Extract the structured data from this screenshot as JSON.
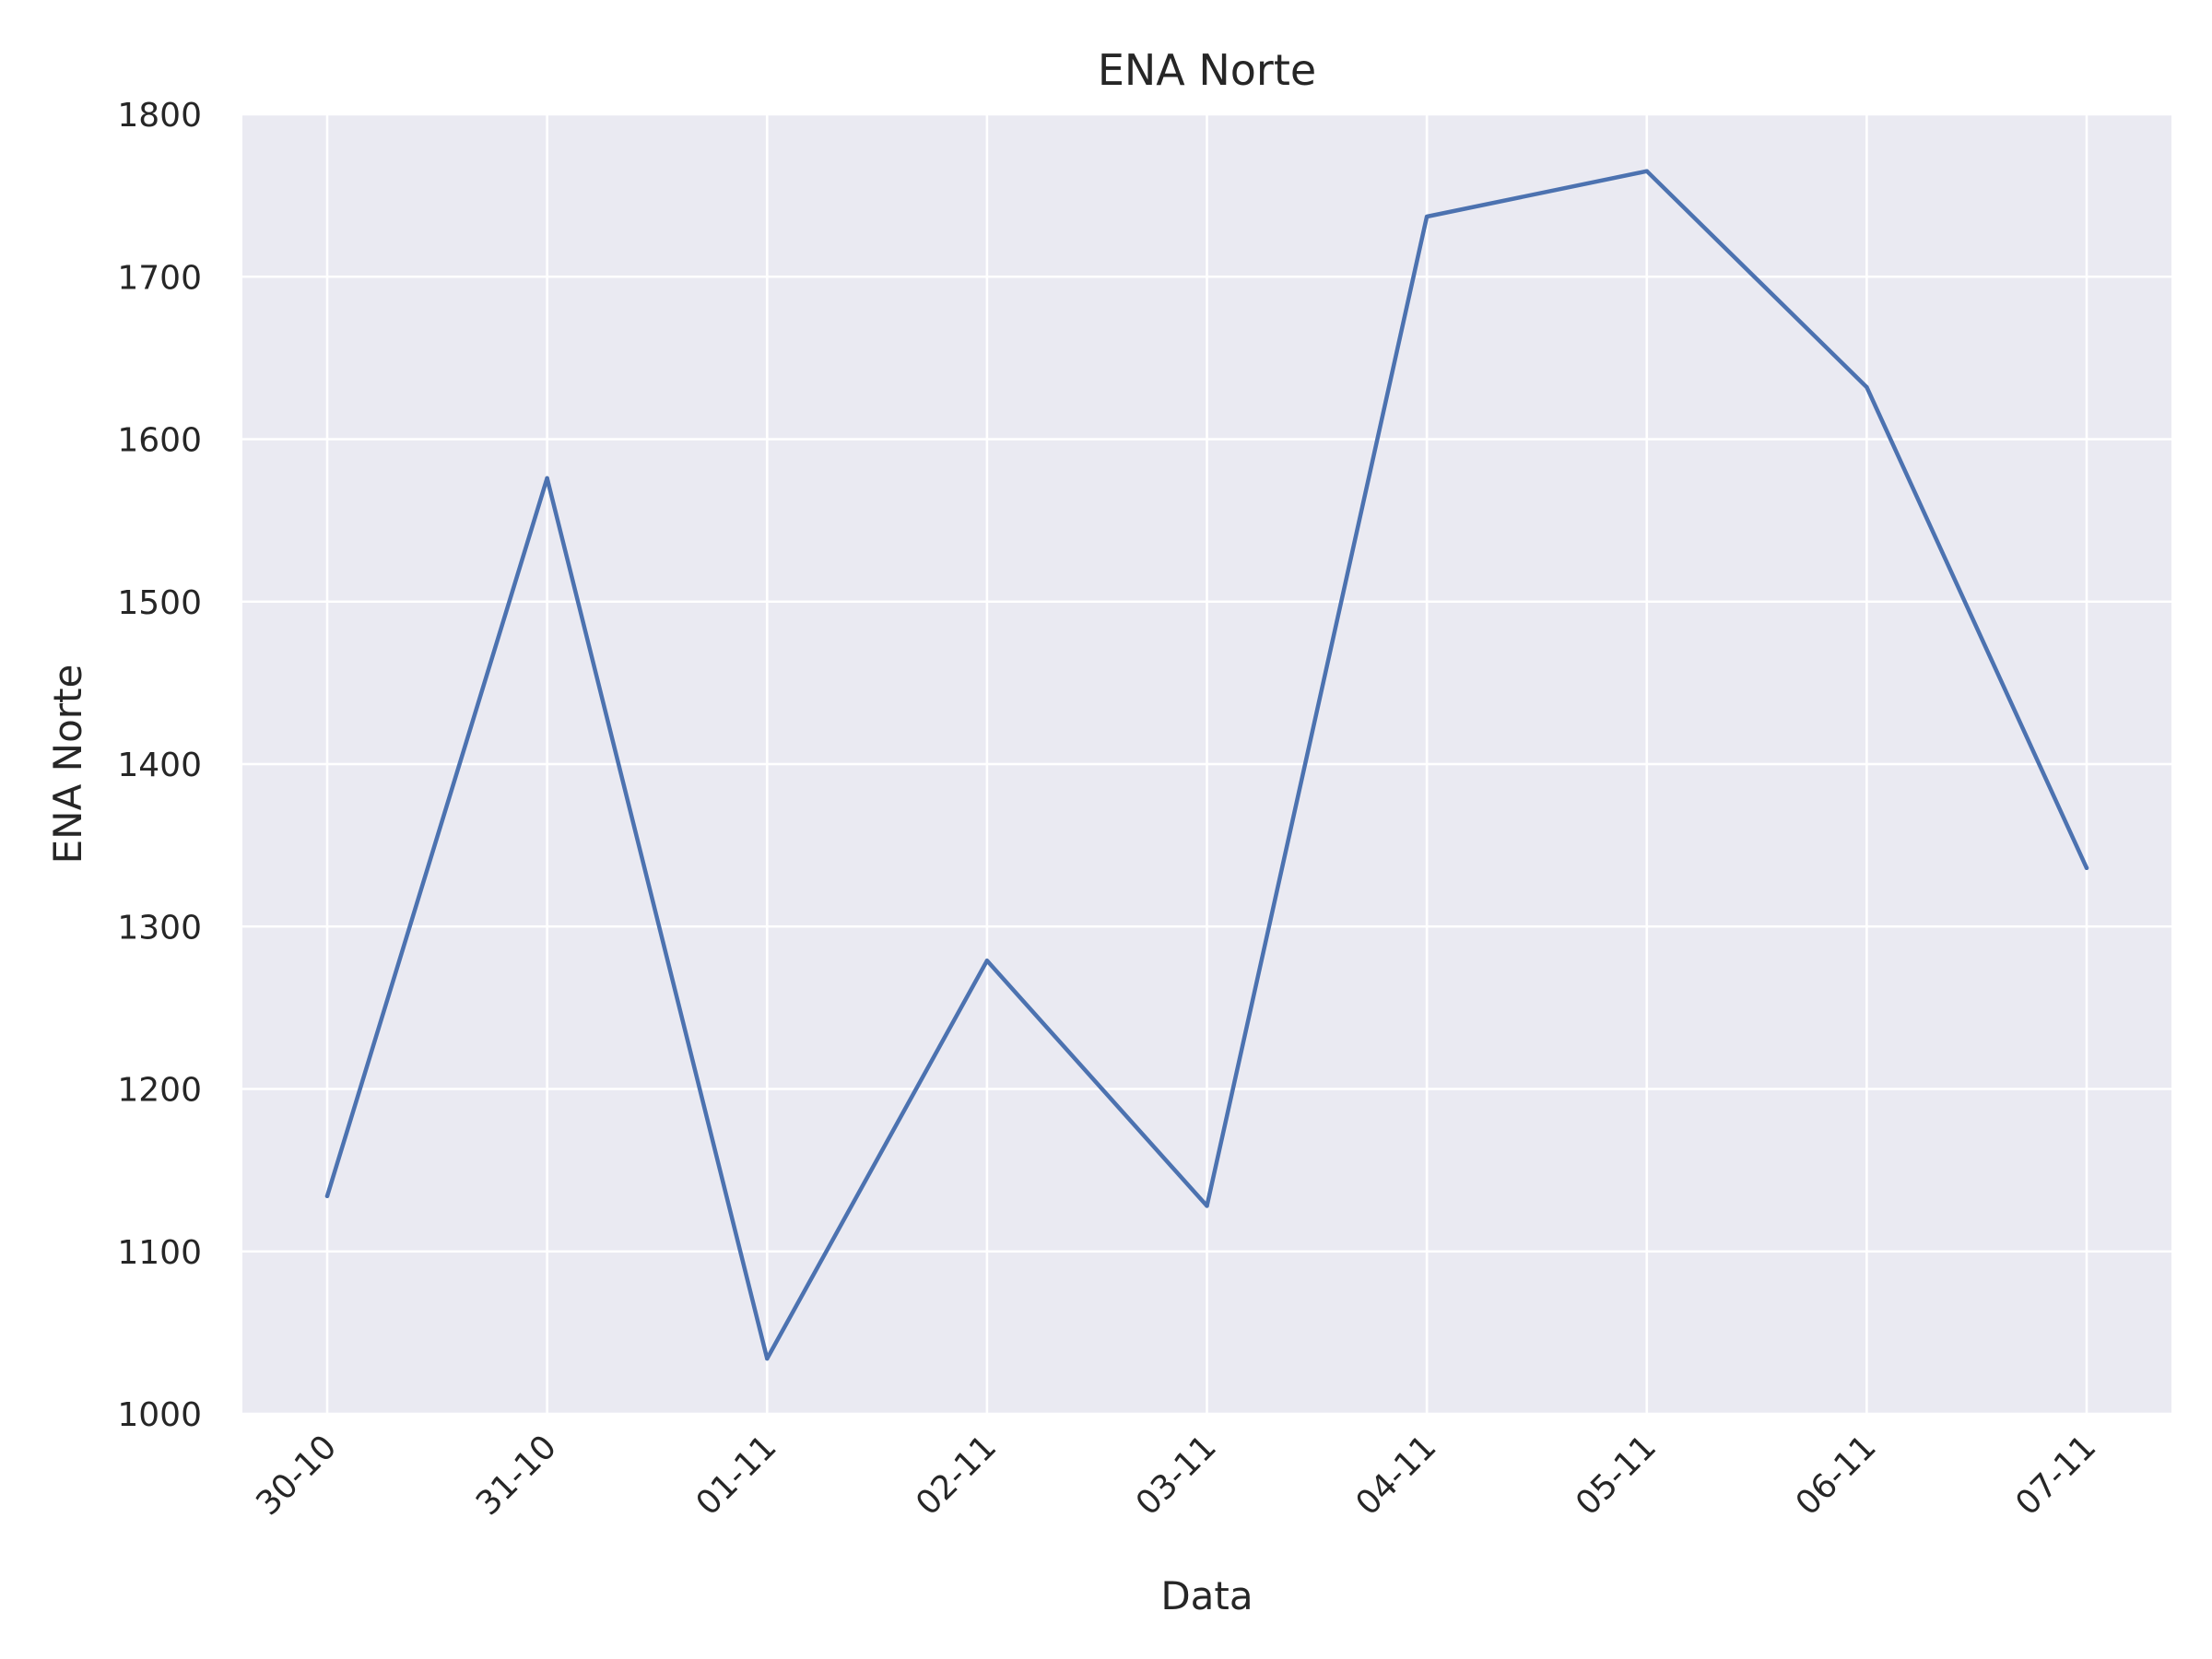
{
  "chart_data": {
    "type": "line",
    "title": "ENA Norte",
    "xlabel": "Data",
    "ylabel": "ENA Norte",
    "categories": [
      "30-10",
      "31-10",
      "01-11",
      "02-11",
      "03-11",
      "04-11",
      "05-11",
      "06-11",
      "07-11"
    ],
    "series": [
      {
        "values": [
          1134,
          1576,
          1034,
          1279,
          1128,
          1737,
          1765,
          1632,
          1336
        ],
        "color": "#4C72B0"
      }
    ],
    "ylim": [
      1000,
      1800
    ],
    "yticks": [
      "1000",
      "1100",
      "1200",
      "1300",
      "1400",
      "1500",
      "1600",
      "1700",
      "1800"
    ],
    "grid": true,
    "legend": "none",
    "background_color": "#EAEAF2",
    "gridline_color": "#FFFFFF"
  }
}
